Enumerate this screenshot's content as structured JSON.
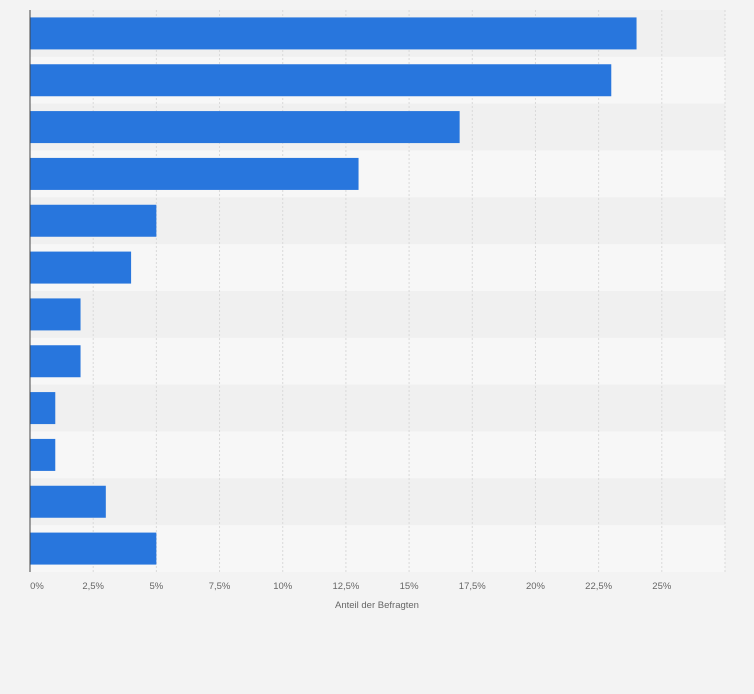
{
  "chart_data": {
    "type": "bar",
    "orientation": "horizontal",
    "categories": [
      "",
      "",
      "",
      "",
      "",
      "",
      "",
      "",
      "",
      "",
      "",
      ""
    ],
    "values": [
      24,
      23,
      17,
      13,
      5,
      4,
      2,
      2,
      1,
      1,
      3,
      5
    ],
    "xlabel": "Anteil der Befragten",
    "ylabel": "",
    "xlim": [
      0,
      27.5
    ],
    "xticks": [
      0,
      2.5,
      5,
      7.5,
      10,
      12.5,
      15,
      17.5,
      20,
      22.5,
      25
    ],
    "xtick_labels": [
      "0%",
      "2,5%",
      "5%",
      "7,5%",
      "10%",
      "12,5%",
      "15%",
      "17,5%",
      "20%",
      "22,5%",
      "25%"
    ],
    "grid": true,
    "legend": "none",
    "colors": {
      "bar": "#2876dd",
      "background": "#f3f3f3",
      "band_light": "#f7f7f7",
      "band_dark": "#f0f0f0",
      "grid": "#d9d9d9",
      "axis": "#444444",
      "text": "#666666"
    }
  }
}
